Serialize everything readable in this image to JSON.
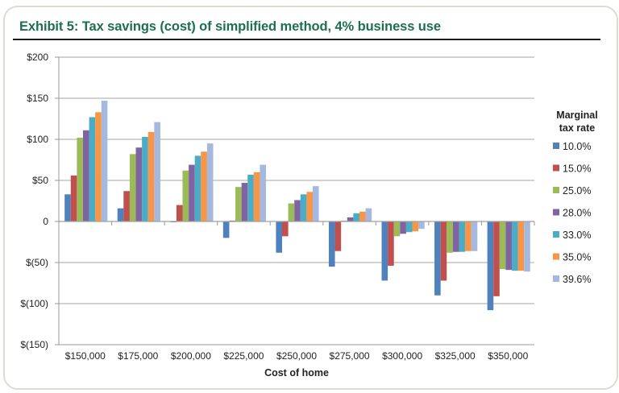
{
  "exhibit": {
    "title": "Exhibit 5: Tax savings (cost) of simplified method, 4% business use"
  },
  "chart_data": {
    "type": "bar",
    "title": "Exhibit 5: Tax savings (cost) of simplified method, 4% business use",
    "xlabel": "Cost of home",
    "ylabel": "",
    "ylim": [
      -150,
      200
    ],
    "yticks": [
      200,
      150,
      100,
      50,
      0,
      -50,
      -100,
      -150
    ],
    "ytick_labels": [
      "$200",
      "$150",
      "$100",
      "$50",
      "0",
      "$(50)",
      "$(100)",
      "$(150)"
    ],
    "grid": true,
    "legend_title": "Marginal tax rate",
    "legend_title_lines": [
      "Marginal",
      "tax rate"
    ],
    "legend_position": "right",
    "categories": [
      "$150,000",
      "$175,000",
      "$200,000",
      "$225,000",
      "$250,000",
      "$275,000",
      "$300,000",
      "$325,000",
      "$350,000"
    ],
    "series": [
      {
        "name": "10.0%",
        "color": "#4f81bd",
        "values": [
          33,
          16,
          -1,
          -20,
          -38,
          -55,
          -72,
          -90,
          -108
        ]
      },
      {
        "name": "15.0%",
        "color": "#c0504d",
        "values": [
          56,
          37,
          20,
          1,
          -18,
          -36,
          -54,
          -72,
          -91
        ]
      },
      {
        "name": "25.0%",
        "color": "#9bbb59",
        "values": [
          102,
          82,
          62,
          42,
          22,
          1,
          -18,
          -38,
          -58
        ]
      },
      {
        "name": "28.0%",
        "color": "#8064a2",
        "values": [
          111,
          90,
          69,
          47,
          26,
          5,
          -15,
          -37,
          -59
        ]
      },
      {
        "name": "33.0%",
        "color": "#4bacc6",
        "values": [
          127,
          103,
          80,
          57,
          33,
          10,
          -13,
          -37,
          -60
        ]
      },
      {
        "name": "35.0%",
        "color": "#f79646",
        "values": [
          133,
          109,
          85,
          60,
          36,
          12,
          -12,
          -36,
          -60
        ]
      },
      {
        "name": "39.6%",
        "color": "#a5b9e0",
        "values": [
          147,
          121,
          95,
          69,
          43,
          16,
          -9,
          -36,
          -61
        ]
      }
    ]
  }
}
